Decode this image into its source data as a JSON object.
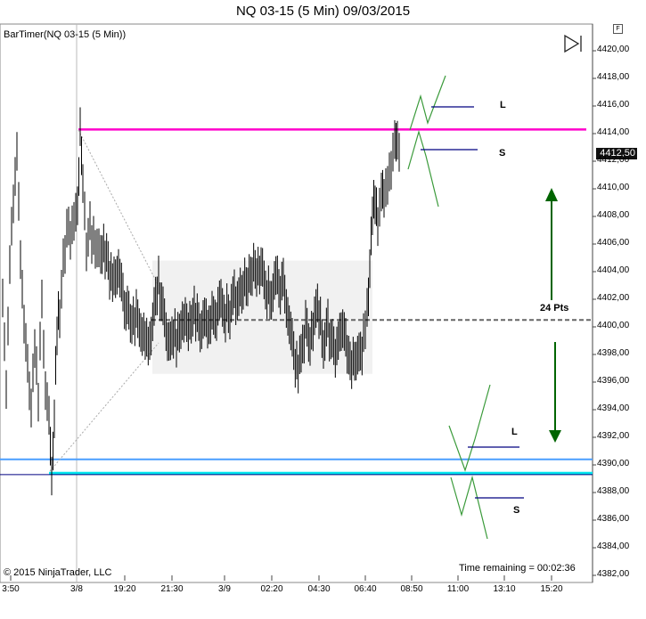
{
  "chart_data": {
    "type": "candlestick",
    "title": "NQ 03-15 (5 Min)  09/03/2015",
    "indicator_label": "BarTimer(NQ 03-15 (5 Min))",
    "copyright": "© 2015 NinjaTrader, LLC",
    "time_remaining": "Time remaining = 00:02:36",
    "last_price": "4412,50",
    "ylim": [
      4382,
      4422
    ],
    "y_ticks": [
      "4420,00",
      "4418,00",
      "4416,00",
      "4414,00",
      "4412,00",
      "4410,00",
      "4408,00",
      "4406,00",
      "4404,00",
      "4402,00",
      "4400,00",
      "4398,00",
      "4396,00",
      "4394,00",
      "4392,00",
      "4390,00",
      "4388,00",
      "4386,00",
      "4384,00",
      "4382,00"
    ],
    "x_ticks": [
      "3:50",
      "3/8",
      "19:20",
      "21:30",
      "3/9",
      "02:20",
      "04:30",
      "06:40",
      "08:50",
      "11:00",
      "13:10",
      "15:20"
    ],
    "price_series": [
      [
        0,
        4402
      ],
      [
        4,
        4396
      ],
      [
        8,
        4404
      ],
      [
        12,
        4409
      ],
      [
        16,
        4413
      ],
      [
        20,
        4405
      ],
      [
        24,
        4401
      ],
      [
        28,
        4397
      ],
      [
        32,
        4394
      ],
      [
        36,
        4398
      ],
      [
        40,
        4395
      ],
      [
        44,
        4402
      ],
      [
        48,
        4396
      ],
      [
        52,
        4393
      ],
      [
        55,
        4389.5
      ],
      [
        58,
        4394
      ],
      [
        61,
        4400
      ],
      [
        64,
        4401
      ],
      [
        68,
        4405
      ],
      [
        72,
        4407
      ],
      [
        76,
        4407
      ],
      [
        80,
        4408
      ],
      [
        84,
        4409
      ],
      [
        87,
        4414
      ],
      [
        90,
        4410
      ],
      [
        94,
        4406
      ],
      [
        98,
        4407
      ],
      [
        102,
        4406
      ],
      [
        106,
        4405
      ],
      [
        110,
        4406
      ],
      [
        115,
        4405
      ],
      [
        120,
        4404
      ],
      [
        125,
        4403
      ],
      [
        130,
        4405
      ],
      [
        135,
        4402
      ],
      [
        140,
        4401
      ],
      [
        145,
        4400
      ],
      [
        150,
        4401
      ],
      [
        155,
        4400
      ],
      [
        160,
        4399
      ],
      [
        165,
        4399
      ],
      [
        170,
        4401
      ],
      [
        175,
        4403
      ],
      [
        180,
        4401
      ],
      [
        185,
        4399
      ],
      [
        190,
        4400
      ],
      [
        195,
        4399
      ],
      [
        200,
        4400
      ],
      [
        205,
        4400
      ],
      [
        210,
        4400
      ],
      [
        215,
        4401
      ],
      [
        220,
        4400
      ],
      [
        225,
        4400
      ],
      [
        230,
        4400
      ],
      [
        235,
        4401
      ],
      [
        240,
        4401
      ],
      [
        245,
        4402
      ],
      [
        250,
        4401
      ],
      [
        255,
        4401
      ],
      [
        260,
        4402
      ],
      [
        265,
        4402
      ],
      [
        270,
        4403
      ],
      [
        275,
        4403
      ],
      [
        280,
        4404
      ],
      [
        285,
        4404
      ],
      [
        290,
        4404
      ],
      [
        295,
        4403
      ],
      [
        300,
        4402
      ],
      [
        305,
        4403
      ],
      [
        310,
        4403
      ],
      [
        315,
        4403
      ],
      [
        320,
        4401
      ],
      [
        325,
        4399
      ],
      [
        330,
        4397
      ],
      [
        335,
        4398
      ],
      [
        340,
        4400
      ],
      [
        345,
        4399
      ],
      [
        350,
        4401
      ],
      [
        355,
        4401
      ],
      [
        360,
        4399
      ],
      [
        365,
        4400
      ],
      [
        370,
        4399
      ],
      [
        375,
        4398
      ],
      [
        380,
        4400
      ],
      [
        385,
        4399
      ],
      [
        390,
        4398
      ],
      [
        395,
        4397
      ],
      [
        400,
        4398
      ],
      [
        405,
        4399
      ],
      [
        409,
        4401
      ],
      [
        412,
        4404
      ],
      [
        415,
        4408
      ],
      [
        418,
        4409
      ],
      [
        421,
        4408
      ],
      [
        425,
        4409
      ],
      [
        428,
        4410
      ],
      [
        432,
        4411
      ],
      [
        436,
        4411
      ],
      [
        440,
        4413
      ],
      [
        443,
        4413
      ],
      [
        447,
        4412.5
      ]
    ],
    "horizontal_lines": [
      {
        "price": 4414.3,
        "color": "#ff00cc"
      },
      {
        "price": 4400.5,
        "color": "#666666",
        "style": "dashed"
      },
      {
        "price": 4390.4,
        "color": "#4a9eff"
      },
      {
        "price": 4389.4,
        "color": "#00e5ee"
      },
      {
        "price": 4389.3,
        "color": "#000080"
      }
    ],
    "consolidation_box": {
      "y_from": 4404.8,
      "y_to": 4396.6
    },
    "annotations": {
      "upper_long": "L",
      "upper_short": "S",
      "range_points": "24 Pts",
      "lower_long": "L",
      "lower_short": "S"
    },
    "colors": {
      "magenta": "#ff00cc",
      "blue": "#4a9eff",
      "cyan": "#00e5ee",
      "navy": "#000080",
      "green": "#006400",
      "zig": "#3a9a3a"
    }
  }
}
